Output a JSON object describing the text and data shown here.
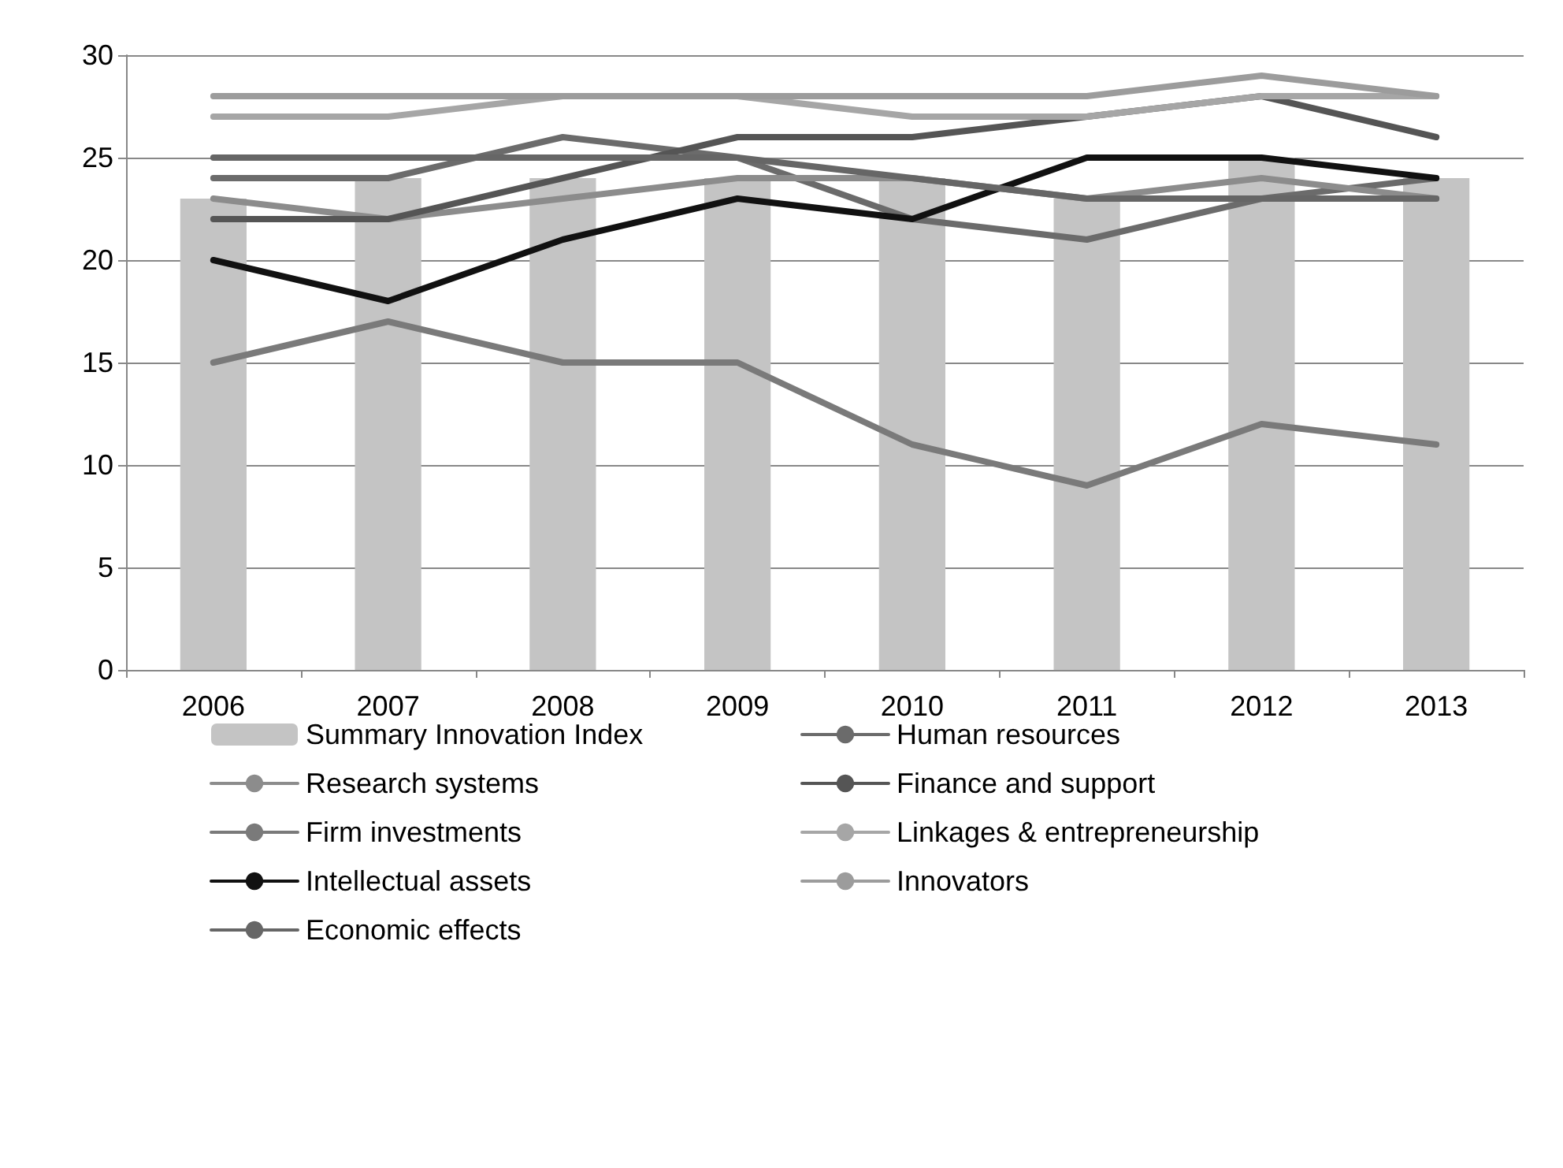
{
  "chart_data": {
    "type": "line",
    "categories": [
      "2006",
      "2007",
      "2008",
      "2009",
      "2010",
      "2011",
      "2012",
      "2013"
    ],
    "ylim": [
      0,
      30
    ],
    "yticks": [
      0,
      5,
      10,
      15,
      20,
      25,
      30
    ],
    "grid": "y",
    "legend": "bottom",
    "marker": "none",
    "series": [
      {
        "name": "Summary Innovation Index",
        "type": "bar",
        "color": "#c4c4c4",
        "values": [
          23,
          24,
          24,
          24,
          24,
          23,
          25,
          24
        ]
      },
      {
        "name": "Human resources",
        "color": "#6b6b6b",
        "values": [
          24,
          24,
          26,
          25,
          22,
          21,
          23,
          24
        ]
      },
      {
        "name": "Research systems",
        "color": "#8c8c8c",
        "values": [
          23,
          22,
          23,
          24,
          24,
          23,
          24,
          23
        ]
      },
      {
        "name": "Finance and support",
        "color": "#555555",
        "values": [
          22,
          22,
          24,
          26,
          26,
          27,
          28,
          26
        ]
      },
      {
        "name": "Firm investments",
        "color": "#7a7a7a",
        "values": [
          15,
          17,
          15,
          15,
          11,
          9,
          12,
          11
        ]
      },
      {
        "name": "Linkages & entrepreneurship",
        "color": "#a6a6a6",
        "values": [
          27,
          27,
          28,
          28,
          27,
          27,
          28,
          28
        ]
      },
      {
        "name": "Intellectual assets",
        "color": "#111111",
        "values": [
          20,
          18,
          21,
          23,
          22,
          25,
          25,
          24
        ]
      },
      {
        "name": "Innovators",
        "color": "#9c9c9c",
        "values": [
          28,
          28,
          28,
          28,
          28,
          28,
          29,
          28
        ]
      },
      {
        "name": "Economic effects",
        "color": "#666666",
        "values": [
          25,
          25,
          25,
          25,
          24,
          23,
          23,
          23
        ]
      }
    ]
  }
}
